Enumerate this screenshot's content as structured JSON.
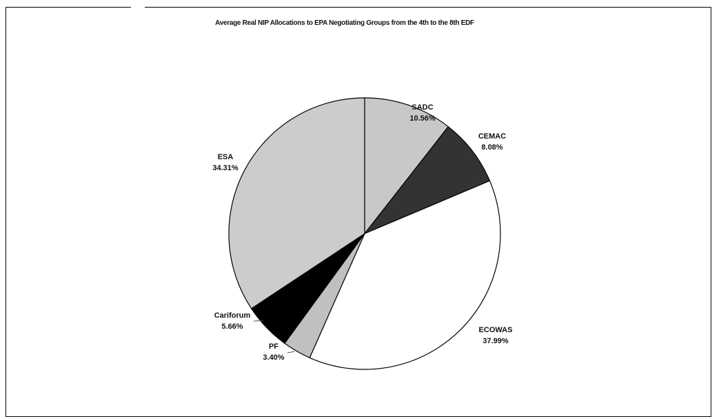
{
  "chart_data": {
    "type": "pie",
    "title": "Average Real NIP Allocations to EPA Negotiating Groups from the 4th to the 8th EDF",
    "slices": [
      {
        "name": "SADC",
        "value": 10.56,
        "label": "10.56%",
        "color": "#c8c8c8"
      },
      {
        "name": "CEMAC",
        "value": 8.08,
        "label": "8.08%",
        "color": "#333333"
      },
      {
        "name": "ECOWAS",
        "value": 37.99,
        "label": "37.99%",
        "color": "#ffffff"
      },
      {
        "name": "PF",
        "value": 3.4,
        "label": "3.40%",
        "color": "#c0c0c0"
      },
      {
        "name": "Cariforum",
        "value": 5.66,
        "label": "5.66%",
        "color": "#000000"
      },
      {
        "name": "ESA",
        "value": 34.31,
        "label": "34.31%",
        "color": "#cccccc"
      }
    ],
    "start_angle": "12 o'clock",
    "direction": "clockwise",
    "legend": "none",
    "labels": "outside"
  }
}
